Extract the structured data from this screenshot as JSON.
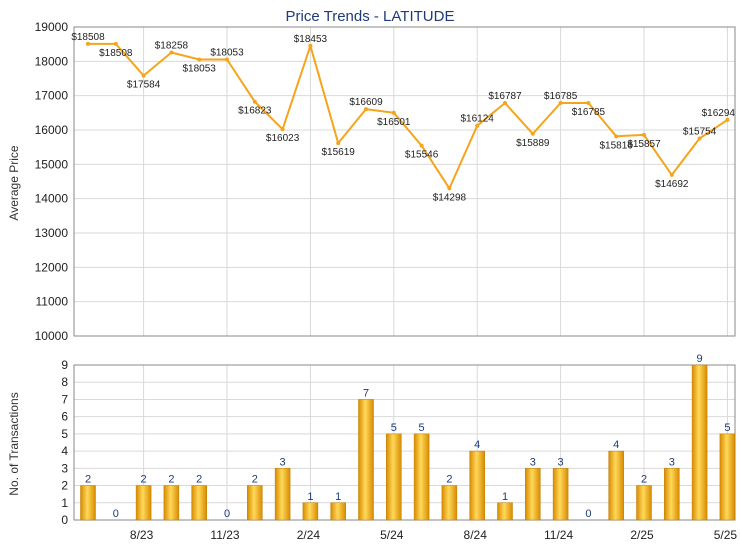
{
  "title": "Price Trends - LATITUDE",
  "colors": {
    "line": "#f5a41c",
    "bar_dark": "#d88b00",
    "bar_light": "#ffd95a",
    "grid": "#d9d9d9",
    "title": "#1f3a78"
  },
  "x_ticks": [
    "8/23",
    "11/23",
    "2/24",
    "5/24",
    "8/24",
    "11/24",
    "2/25",
    "5/25"
  ],
  "chart_data": [
    {
      "type": "line",
      "title": "Price Trends - LATITUDE",
      "ylabel": "Average Price",
      "ylim": [
        10000,
        19000
      ],
      "yticks": [
        10000,
        11000,
        12000,
        13000,
        14000,
        15000,
        16000,
        17000,
        18000,
        19000
      ],
      "grid": true,
      "points": [
        {
          "i": 0,
          "y": 18508,
          "label": "$18508"
        },
        {
          "i": 1,
          "y": 18508,
          "label": "$18508"
        },
        {
          "i": 2,
          "y": 17584,
          "label": "$17584"
        },
        {
          "i": 3,
          "y": 18258,
          "label": "$18258"
        },
        {
          "i": 4,
          "y": 18053,
          "label": "$18053"
        },
        {
          "i": 5,
          "y": 18053,
          "label": "$18053"
        },
        {
          "i": 6,
          "y": 16823,
          "label": "$16823"
        },
        {
          "i": 7,
          "y": 16023,
          "label": "$16023"
        },
        {
          "i": 8,
          "y": 18453,
          "label": "$18453"
        },
        {
          "i": 9,
          "y": 15619,
          "label": "$15619"
        },
        {
          "i": 10,
          "y": 16609,
          "label": "$16609"
        },
        {
          "i": 11,
          "y": 16501,
          "label": "$16501"
        },
        {
          "i": 12,
          "y": 15546,
          "label": "$15546"
        },
        {
          "i": 13,
          "y": 14298,
          "label": "$14298"
        },
        {
          "i": 14,
          "y": 16124,
          "label": "$16124"
        },
        {
          "i": 15,
          "y": 16787,
          "label": "$16787"
        },
        {
          "i": 16,
          "y": 15889,
          "label": "$15889"
        },
        {
          "i": 17,
          "y": 16785,
          "label": "$16785"
        },
        {
          "i": 18,
          "y": 16785,
          "label": "$16785"
        },
        {
          "i": 19,
          "y": 15816,
          "label": "$15816"
        },
        {
          "i": 20,
          "y": 15857,
          "label": "$15857"
        },
        {
          "i": 21,
          "y": 14692,
          "label": "$14692"
        },
        {
          "i": 22,
          "y": 15754,
          "label": "$15754"
        },
        {
          "i": 23,
          "y": 16294,
          "label": "$16294"
        }
      ]
    },
    {
      "type": "bar",
      "ylabel": "No. of Transactions",
      "ylim": [
        0,
        9
      ],
      "yticks": [
        0,
        1,
        2,
        3,
        4,
        5,
        6,
        7,
        8,
        9
      ],
      "grid": true,
      "values": [
        2,
        0,
        2,
        2,
        2,
        0,
        2,
        3,
        1,
        1,
        7,
        5,
        5,
        2,
        4,
        1,
        3,
        3,
        0,
        4,
        2,
        3,
        9,
        5
      ]
    }
  ]
}
